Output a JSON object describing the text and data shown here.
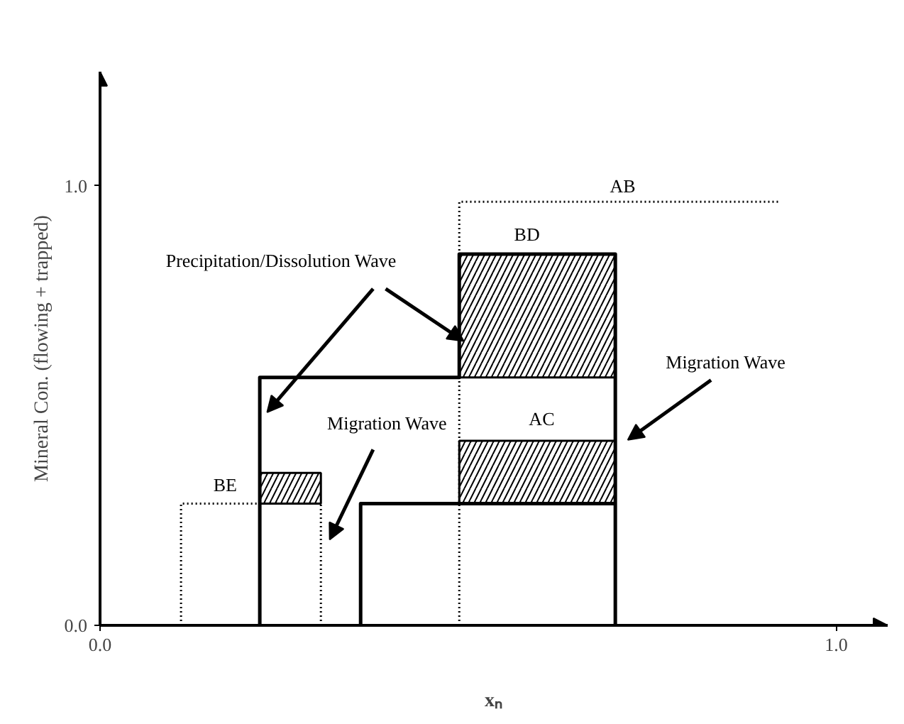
{
  "chart_data": {
    "type": "line",
    "xlabel": "xₙ",
    "ylabel": "Mineral Con. (flowing + trapped)",
    "xlim": [
      0,
      1.07
    ],
    "ylim": [
      0,
      1.26
    ],
    "xticks": [
      {
        "value": 0,
        "label": "0.0"
      },
      {
        "value": 1,
        "label": "1.0"
      }
    ],
    "yticks": [
      {
        "value": 0,
        "label": "0.0"
      },
      {
        "value": 1,
        "label": "1.0"
      }
    ],
    "series": [
      {
        "type": "area",
        "color": "#000000",
        "x": [
          0.488,
          0.7,
          0.7,
          0.488,
          0.488
        ],
        "values": [
          0.564,
          0.564,
          0.845,
          0.845,
          0.564
        ]
      },
      {
        "type": "area",
        "color": "#000000",
        "x": [
          0.488,
          0.7,
          0.7,
          0.488,
          0.488
        ],
        "values": [
          0.277,
          0.277,
          0.42,
          0.42,
          0.277
        ]
      },
      {
        "type": "area",
        "color": "#000000",
        "x": [
          0.217,
          0.3,
          0.3,
          0.217,
          0.217
        ],
        "values": [
          0.277,
          0.277,
          0.347,
          0.347,
          0.277
        ]
      },
      {
        "color": "#000000",
        "line_style": "dotted",
        "x": [
          0.11,
          0.11,
          0.217
        ],
        "values": [
          0,
          0.277,
          0.277
        ]
      },
      {
        "color": "#000000",
        "line_style": "solid",
        "x": [
          0.217,
          0.217,
          0.488,
          0.488,
          0.7,
          0.7
        ],
        "values": [
          0,
          0.564,
          0.564,
          0.845,
          0.845,
          0
        ]
      },
      {
        "color": "#000000",
        "line_style": "dotted",
        "x": [
          0.3,
          0.3
        ],
        "values": [
          0,
          0.277
        ]
      },
      {
        "color": "#000000",
        "line_style": "solid",
        "x": [
          0.354,
          0.354,
          0.7
        ],
        "values": [
          0,
          0.277,
          0.277
        ]
      },
      {
        "color": "#000000",
        "line_style": "dotted",
        "x": [
          0.488,
          0.488,
          0.923
        ],
        "values": [
          0,
          0.964,
          0.964
        ]
      }
    ],
    "annotations": [
      "AB",
      "BD",
      "AC",
      "BE",
      {
        "text": "Precipitation/Dissolution Wave",
        "x": 0.227,
        "y": 0.485
      },
      "Migration Wave",
      "Migration Wave"
    ]
  }
}
